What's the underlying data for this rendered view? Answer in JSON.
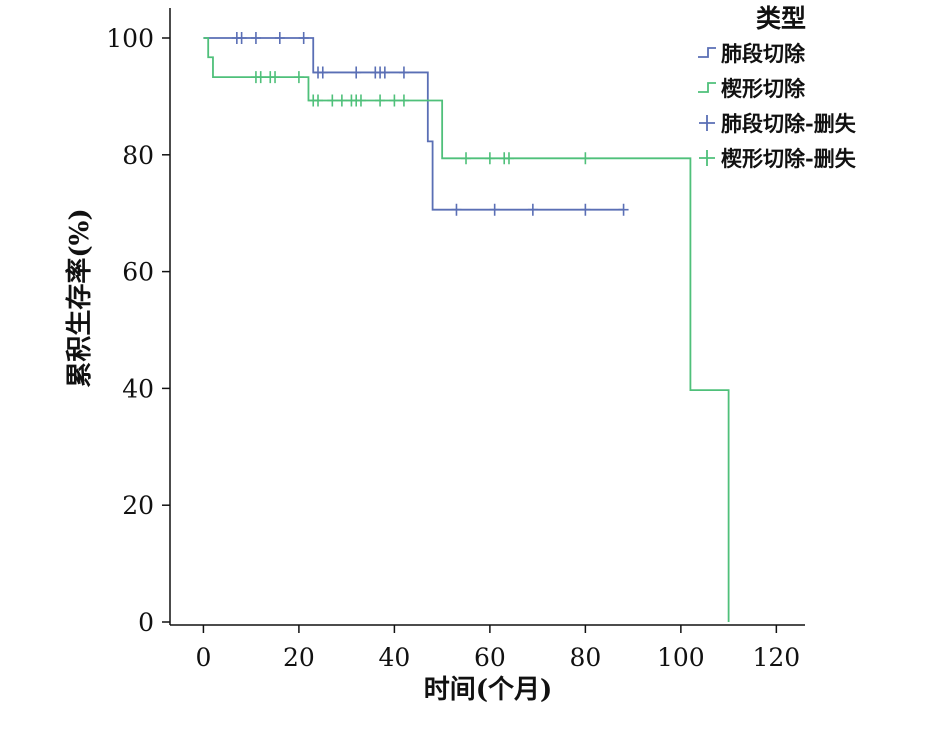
{
  "colors": {
    "blue": "#5a6fb5",
    "green": "#4fc07a",
    "axis": "#111111"
  },
  "chart_data": {
    "type": "line",
    "title": "",
    "xlabel": "时间(个月)",
    "ylabel": "累积生存率(%)",
    "xlim": [
      -7,
      126
    ],
    "ylim": [
      0,
      100
    ],
    "xticks": [
      0,
      20,
      40,
      60,
      80,
      100,
      120
    ],
    "yticks": [
      0,
      20,
      40,
      60,
      80,
      100
    ],
    "xtick_labels": [
      "0",
      "20",
      "40",
      "60",
      "80",
      "100",
      "120"
    ],
    "ytick_labels": [
      "0",
      "20",
      "40",
      "60",
      "80",
      "100"
    ],
    "legend": {
      "title": "类型",
      "placement": "top-right",
      "entries": [
        "肺段切除",
        "楔形切除",
        "肺段切除-删失",
        "楔形切除-删失"
      ]
    },
    "series": [
      {
        "name": "肺段切除",
        "color": "#5a6fb5",
        "steps": [
          [
            0,
            100
          ],
          [
            23,
            94.1
          ],
          [
            47,
            82.3
          ],
          [
            48,
            70.6
          ],
          [
            88,
            70.6
          ]
        ],
        "censored": [
          [
            7,
            100
          ],
          [
            8,
            100
          ],
          [
            11,
            100
          ],
          [
            16,
            100
          ],
          [
            21,
            100
          ],
          [
            24,
            94.1
          ],
          [
            25,
            94.1
          ],
          [
            32,
            94.1
          ],
          [
            36,
            94.1
          ],
          [
            37,
            94.1
          ],
          [
            38,
            94.1
          ],
          [
            42,
            94.1
          ],
          [
            53,
            70.6
          ],
          [
            61,
            70.6
          ],
          [
            69,
            70.6
          ],
          [
            80,
            70.6
          ],
          [
            88,
            70.6
          ]
        ]
      },
      {
        "name": "楔形切除",
        "color": "#4fc07a",
        "steps": [
          [
            0,
            100
          ],
          [
            1,
            96.7
          ],
          [
            2,
            93.3
          ],
          [
            22,
            89.3
          ],
          [
            50,
            79.4
          ],
          [
            102,
            39.7
          ],
          [
            110,
            0
          ]
        ],
        "censored": [
          [
            11,
            93.3
          ],
          [
            12,
            93.3
          ],
          [
            14,
            93.3
          ],
          [
            15,
            93.3
          ],
          [
            20,
            93.3
          ],
          [
            23,
            89.3
          ],
          [
            24,
            89.3
          ],
          [
            27,
            89.3
          ],
          [
            29,
            89.3
          ],
          [
            31,
            89.3
          ],
          [
            32,
            89.3
          ],
          [
            33,
            89.3
          ],
          [
            37,
            89.3
          ],
          [
            40,
            89.3
          ],
          [
            42,
            89.3
          ],
          [
            55,
            79.4
          ],
          [
            60,
            79.4
          ],
          [
            63,
            79.4
          ],
          [
            64,
            79.4
          ],
          [
            80,
            79.4
          ]
        ]
      }
    ]
  }
}
